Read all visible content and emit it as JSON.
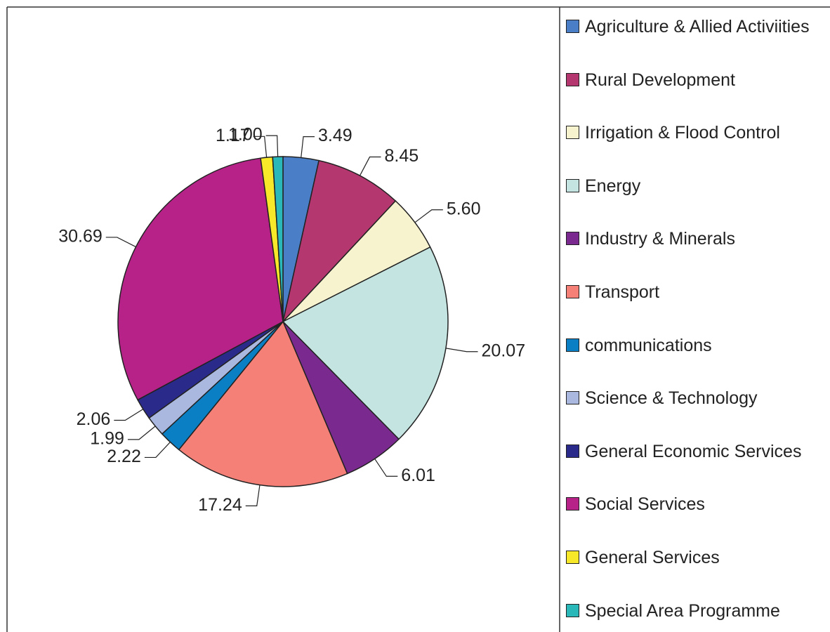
{
  "chart_data": {
    "type": "pie",
    "categories": [
      "Agriculture & Allied Activiities",
      "Rural Development",
      "Irrigation & Flood Control",
      "Energy",
      "Industry & Minerals",
      "Transport",
      "communications",
      "Science & Technology",
      "General Economic Services",
      "Social Services",
      "General Services",
      "Special Area Programme"
    ],
    "values": [
      3.49,
      8.45,
      5.6,
      20.07,
      6.01,
      17.24,
      2.22,
      1.99,
      2.06,
      30.69,
      1.17,
      1.0
    ],
    "value_labels": [
      "3.49",
      "8.45",
      "5.60",
      "20.07",
      "6.01",
      "17.24",
      "2.22",
      "1.99",
      "2.06",
      "30.69",
      "1.17",
      "1.00"
    ],
    "colors": [
      "#4a7fc8",
      "#b5376f",
      "#f8f3cf",
      "#c3e4e0",
      "#7a2a8e",
      "#f48077",
      "#0a7fc4",
      "#aab8e0",
      "#2a2a8a",
      "#b72289",
      "#f7e82a",
      "#2ab8b8"
    ]
  }
}
